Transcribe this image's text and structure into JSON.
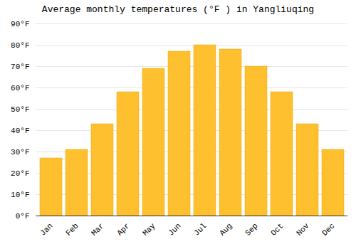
{
  "chart_data": {
    "type": "bar",
    "title": "Average monthly temperatures (°F ) in Yangliuqing",
    "categories": [
      "Jan",
      "Feb",
      "Mar",
      "Apr",
      "May",
      "Jun",
      "Jul",
      "Aug",
      "Sep",
      "Oct",
      "Nov",
      "Dec"
    ],
    "values": [
      27,
      31,
      43,
      58,
      69,
      77,
      80,
      78,
      70,
      58,
      43,
      31
    ],
    "color": "#FFC030",
    "ylim": [
      0,
      90
    ],
    "yticks": [
      {
        "value": 0,
        "label": "0°F"
      },
      {
        "value": 10,
        "label": "10°F"
      },
      {
        "value": 20,
        "label": "20°F"
      },
      {
        "value": 30,
        "label": "30°F"
      },
      {
        "value": 40,
        "label": "40°F"
      },
      {
        "value": 50,
        "label": "50°F"
      },
      {
        "value": 60,
        "label": "60°F"
      },
      {
        "value": 70,
        "label": "70°F"
      },
      {
        "value": 80,
        "label": "80°F"
      },
      {
        "value": 90,
        "label": "90°F"
      }
    ],
    "grid": true
  }
}
